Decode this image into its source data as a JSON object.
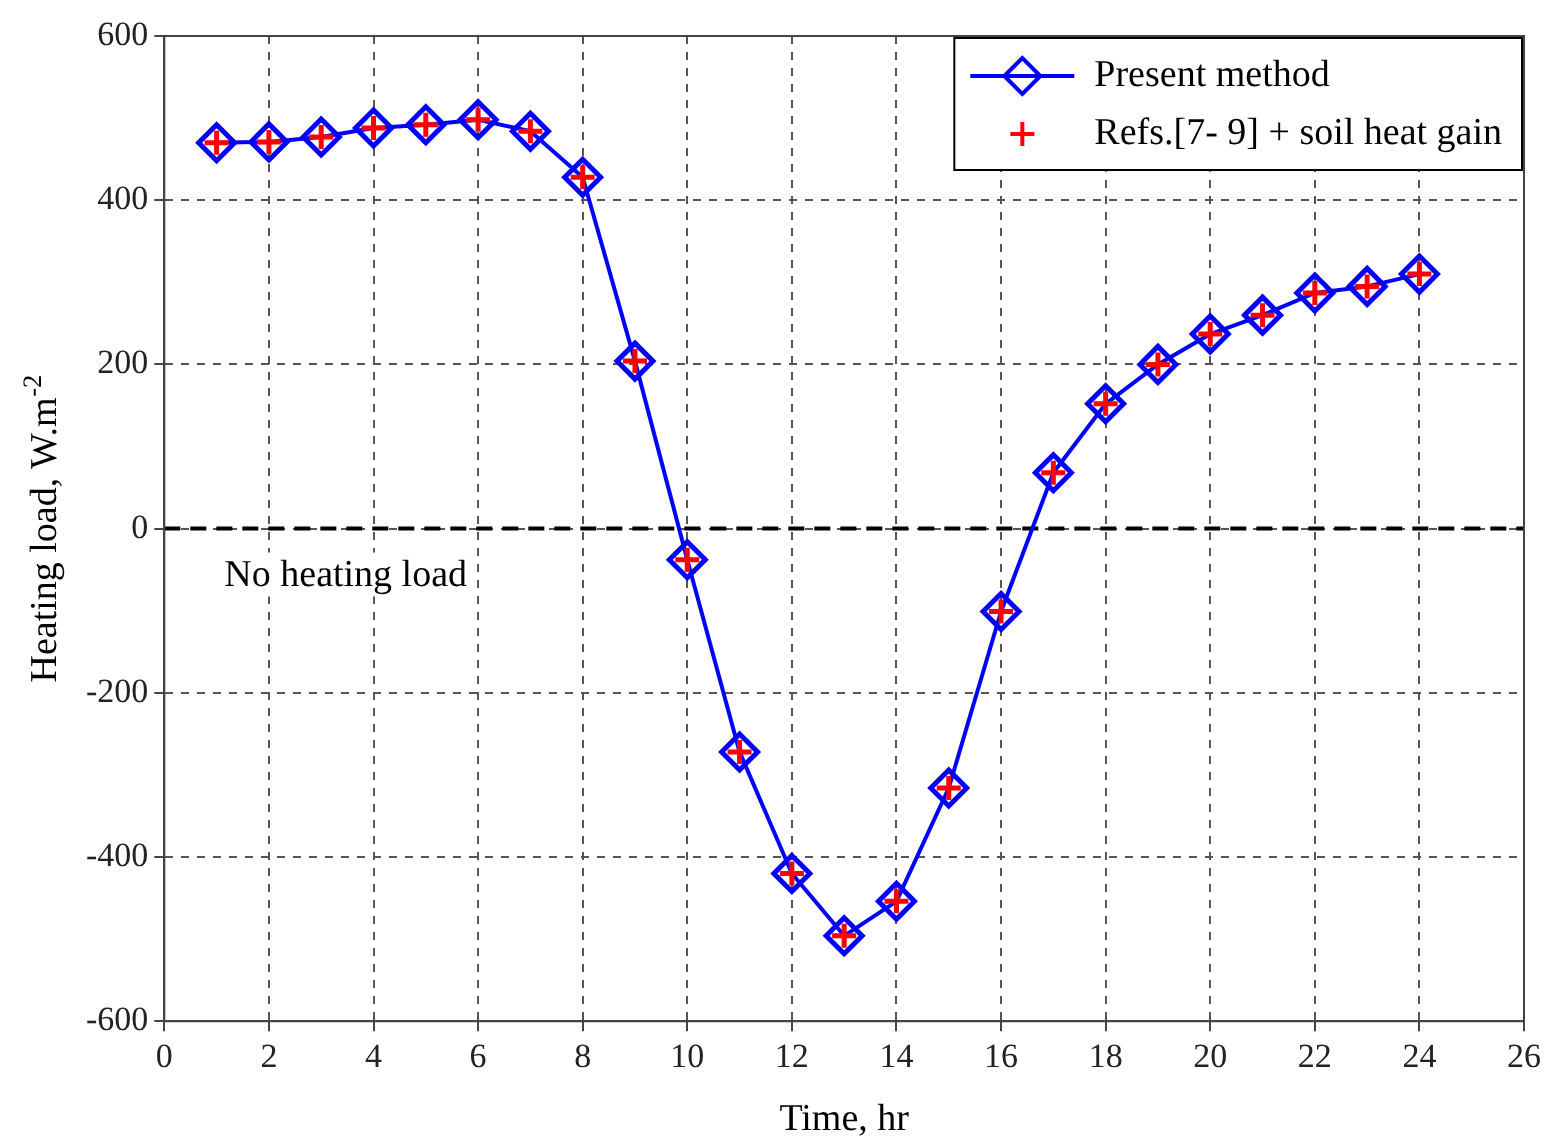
{
  "chart_data": {
    "type": "line",
    "xlabel": "Time, hr",
    "ylabel": "Heating load, W.m$^{-2}$",
    "x": [
      1,
      2,
      3,
      4,
      5,
      6,
      7,
      8,
      9,
      10,
      11,
      12,
      13,
      14,
      15,
      16,
      17,
      18,
      19,
      20,
      21,
      22,
      23,
      24
    ],
    "series": [
      {
        "name": "Present method",
        "color": "#0000ff",
        "marker": "diamond",
        "line_style": "solid",
        "values": [
          470,
          471,
          477,
          488,
          492,
          498,
          484,
          428,
          204,
          -38,
          -272,
          -420,
          -496,
          -454,
          -316,
          -101,
          68,
          152,
          200,
          237,
          260,
          287,
          295,
          310
        ]
      },
      {
        "name": "Refs.[7- 9] + soil heat gain",
        "type": "scatter",
        "color": "#ff0000",
        "marker": "cross",
        "values": [
          470,
          471,
          477,
          488,
          492,
          498,
          484,
          428,
          204,
          -38,
          -272,
          -420,
          -496,
          -454,
          -316,
          -101,
          68,
          152,
          200,
          237,
          260,
          287,
          295,
          310
        ]
      }
    ],
    "xlim": [
      0,
      26
    ],
    "xticks": [
      0,
      2,
      4,
      6,
      8,
      10,
      12,
      14,
      16,
      18,
      20,
      22,
      24,
      26
    ],
    "ylim": [
      -600,
      600
    ],
    "yticks": [
      -600,
      -400,
      -200,
      0,
      200,
      400,
      600
    ],
    "ref_lines": [
      {
        "axis": "y",
        "value": 0,
        "label": "No heating load",
        "color": "#000000",
        "line_style": "dashed"
      }
    ],
    "grid": true,
    "legend": "top right"
  }
}
